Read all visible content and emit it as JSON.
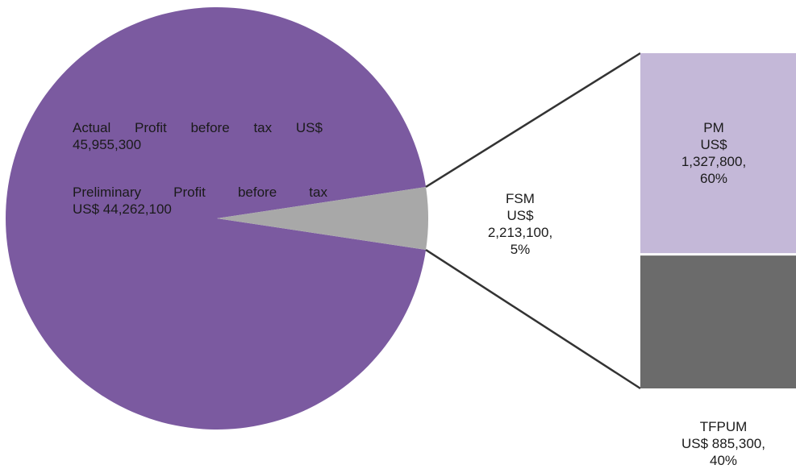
{
  "chart_data": {
    "type": "pie",
    "subtype": "pie-of-pie (bar-of-pie)",
    "colors": {
      "main_slice": "#7b5aa0",
      "exploded_slice": "#a8a8a8",
      "pm_bar": "#c4b8d8",
      "tfpum_bar": "#6b6b6b",
      "connector": "#333333"
    },
    "pie": {
      "slices": [
        {
          "label_lines": [
            "Actual Profit before tax US$",
            "45,955,300"
          ],
          "sub_label_lines": [
            "Preliminary Profit before tax",
            "US$ 44,262,100"
          ],
          "value": 44262100,
          "percent": 95
        },
        {
          "label_lines": [
            "FSM",
            "US$",
            "2,213,100,",
            "5%"
          ],
          "name": "FSM",
          "value": 2213100,
          "percent": 5
        }
      ]
    },
    "breakdown": {
      "of": "FSM",
      "segments": [
        {
          "name": "PM",
          "label_lines": [
            "PM",
            "US$",
            "1,327,800,",
            "60%"
          ],
          "value": 1327800,
          "percent": 60
        },
        {
          "name": "TFPUM",
          "label_lines": [
            "TFPUM",
            "US$ 885,300,",
            "40%"
          ],
          "value": 885300,
          "percent": 40
        }
      ]
    }
  }
}
